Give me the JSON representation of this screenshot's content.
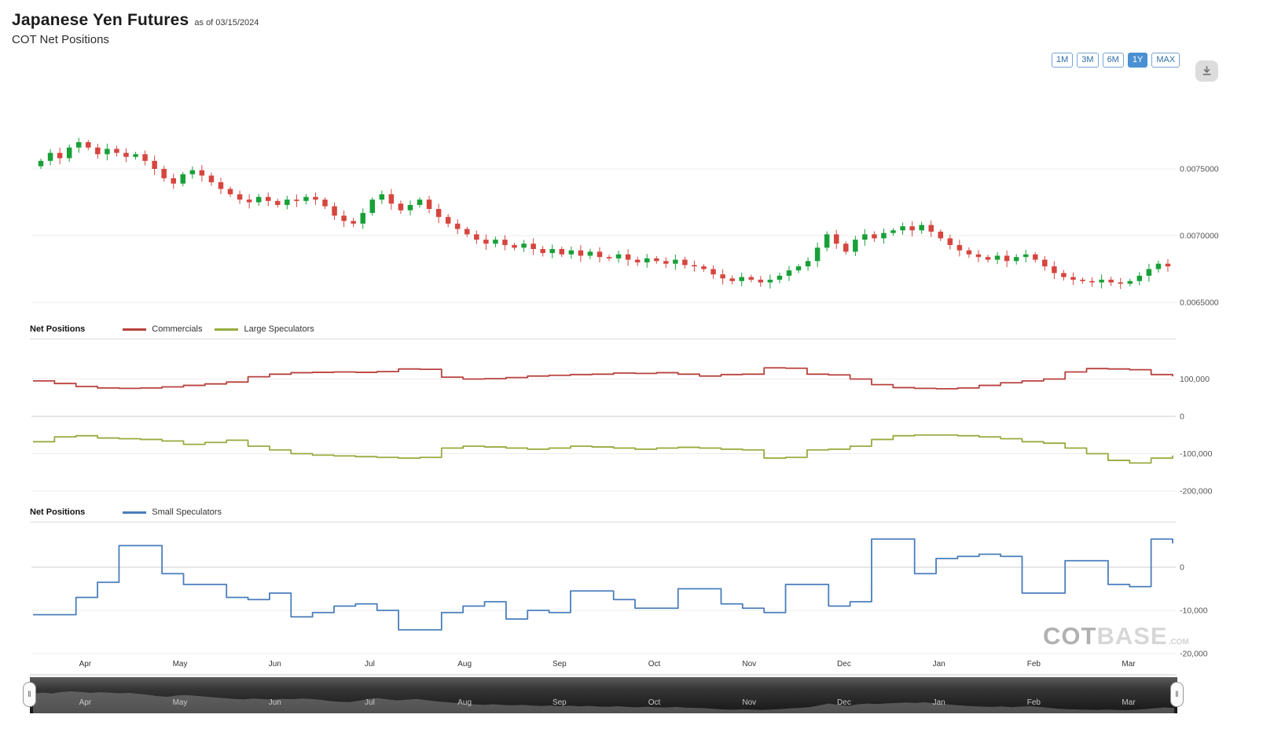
{
  "header": {
    "title": "Japanese Yen Futures",
    "as_of": "as of 03/15/2024",
    "subtitle": "COT Net Positions"
  },
  "toolbar": {
    "ranges": [
      {
        "label": "1M",
        "active": false
      },
      {
        "label": "3M",
        "active": false
      },
      {
        "label": "6M",
        "active": false
      },
      {
        "label": "1Y",
        "active": true
      },
      {
        "label": "MAX",
        "active": false
      }
    ]
  },
  "watermark": {
    "cot": "COT",
    "base": "BASE",
    "com": ".COM"
  },
  "navigator": {
    "handle_glyph": "‖"
  },
  "chart_data": [
    {
      "type": "candlestick",
      "panel_label": "Japanese Yen Futures price",
      "x_ticks": [
        "Apr",
        "May",
        "Jun",
        "Jul",
        "Aug",
        "Sep",
        "Oct",
        "Nov",
        "Dec",
        "Jan",
        "Feb",
        "Mar"
      ],
      "y_ticks": [
        "0.0075000",
        "0.0070000",
        "0.0065000"
      ],
      "y_tick_values": [
        0.0075,
        0.007,
        0.0065
      ],
      "ylim": [
        0.0064,
        0.0079
      ],
      "colors": {
        "up": "#18a038",
        "down": "#d6453f"
      },
      "open_first": 0.00752,
      "closes": [
        0.00756,
        0.00762,
        0.00758,
        0.00766,
        0.0077,
        0.00766,
        0.00761,
        0.00765,
        0.00762,
        0.00759,
        0.00761,
        0.00756,
        0.0075,
        0.00743,
        0.00739,
        0.00746,
        0.00749,
        0.00745,
        0.0074,
        0.00735,
        0.00731,
        0.00727,
        0.00725,
        0.00729,
        0.00726,
        0.00723,
        0.00727,
        0.00726,
        0.00729,
        0.00727,
        0.00722,
        0.00715,
        0.00711,
        0.00709,
        0.00717,
        0.00727,
        0.00731,
        0.00724,
        0.00719,
        0.00723,
        0.00727,
        0.0072,
        0.00714,
        0.00709,
        0.00705,
        0.00701,
        0.00697,
        0.00694,
        0.00697,
        0.00693,
        0.00691,
        0.00694,
        0.0069,
        0.00687,
        0.0069,
        0.00686,
        0.00689,
        0.00685,
        0.00688,
        0.00684,
        0.00683,
        0.00686,
        0.00682,
        0.0068,
        0.00683,
        0.00681,
        0.00679,
        0.00682,
        0.00678,
        0.00677,
        0.00675,
        0.00671,
        0.00668,
        0.00666,
        0.00669,
        0.00667,
        0.00665,
        0.00667,
        0.0067,
        0.00674,
        0.00677,
        0.00681,
        0.00691,
        0.00701,
        0.00694,
        0.00688,
        0.00697,
        0.00701,
        0.00698,
        0.00702,
        0.00704,
        0.00707,
        0.00704,
        0.00708,
        0.00703,
        0.00698,
        0.00693,
        0.00689,
        0.00686,
        0.00684,
        0.00682,
        0.00685,
        0.00681,
        0.00684,
        0.00686,
        0.00682,
        0.00677,
        0.00672,
        0.00669,
        0.00667,
        0.00666,
        0.00665,
        0.00667,
        0.00665,
        0.00664,
        0.00666,
        0.0067,
        0.00675,
        0.00679,
        0.00677
      ]
    },
    {
      "type": "line",
      "panel_label": "Net Positions",
      "step": true,
      "y_ticks": [
        "100,000",
        "0",
        "-100,000",
        "-200,000"
      ],
      "y_tick_values": [
        100000,
        0,
        -100000,
        -200000
      ],
      "ylim": [
        -215000,
        150000
      ],
      "series": [
        {
          "name": "Commercials",
          "color": "#b8413d",
          "values": [
            95000,
            88000,
            80000,
            76000,
            75000,
            76000,
            79000,
            83000,
            87000,
            92000,
            106000,
            113000,
            117000,
            118000,
            119000,
            118000,
            120000,
            127000,
            126000,
            105000,
            100000,
            101000,
            104000,
            108000,
            110000,
            112000,
            113000,
            116000,
            115000,
            117000,
            113000,
            108000,
            112000,
            113000,
            130000,
            129000,
            113000,
            111000,
            100000,
            85000,
            77000,
            75000,
            74000,
            76000,
            83000,
            90000,
            95000,
            100000,
            119000,
            128000,
            127000,
            125000,
            112000,
            107000
          ]
        },
        {
          "name": "Large Speculators",
          "color": "#96ab3e",
          "values": [
            -68000,
            -55000,
            -52000,
            -58000,
            -60000,
            -62000,
            -66000,
            -75000,
            -70000,
            -64000,
            -80000,
            -90000,
            -100000,
            -104000,
            -106000,
            -108000,
            -110000,
            -112000,
            -110000,
            -85000,
            -80000,
            -82000,
            -85000,
            -88000,
            -85000,
            -80000,
            -82000,
            -85000,
            -88000,
            -85000,
            -83000,
            -85000,
            -88000,
            -90000,
            -112000,
            -110000,
            -90000,
            -88000,
            -80000,
            -62000,
            -52000,
            -50000,
            -50000,
            -52000,
            -55000,
            -60000,
            -68000,
            -72000,
            -85000,
            -100000,
            -118000,
            -125000,
            -112000,
            -105000
          ]
        }
      ]
    },
    {
      "type": "line",
      "panel_label": "Net Positions",
      "step": true,
      "y_ticks": [
        "0",
        "-10,000",
        "-20,000"
      ],
      "y_tick_values": [
        0,
        -10000,
        -20000
      ],
      "ylim": [
        -22000,
        9000
      ],
      "series": [
        {
          "name": "Small Speculators",
          "color": "#4a7ebb",
          "values": [
            -11000,
            -11000,
            -7000,
            -3500,
            5000,
            5000,
            -1500,
            -4000,
            -4000,
            -7000,
            -7500,
            -6000,
            -11500,
            -10500,
            -9000,
            -8500,
            -10000,
            -14500,
            -14500,
            -10500,
            -9000,
            -8000,
            -12000,
            -10000,
            -10500,
            -5500,
            -5500,
            -7500,
            -9500,
            -9500,
            -5000,
            -5000,
            -8500,
            -9500,
            -10500,
            -4000,
            -4000,
            -9000,
            -8000,
            6500,
            6500,
            -1500,
            2000,
            2500,
            3000,
            2500,
            -6000,
            -6000,
            1500,
            1500,
            -4000,
            -4500,
            6500,
            5500
          ]
        }
      ]
    }
  ]
}
